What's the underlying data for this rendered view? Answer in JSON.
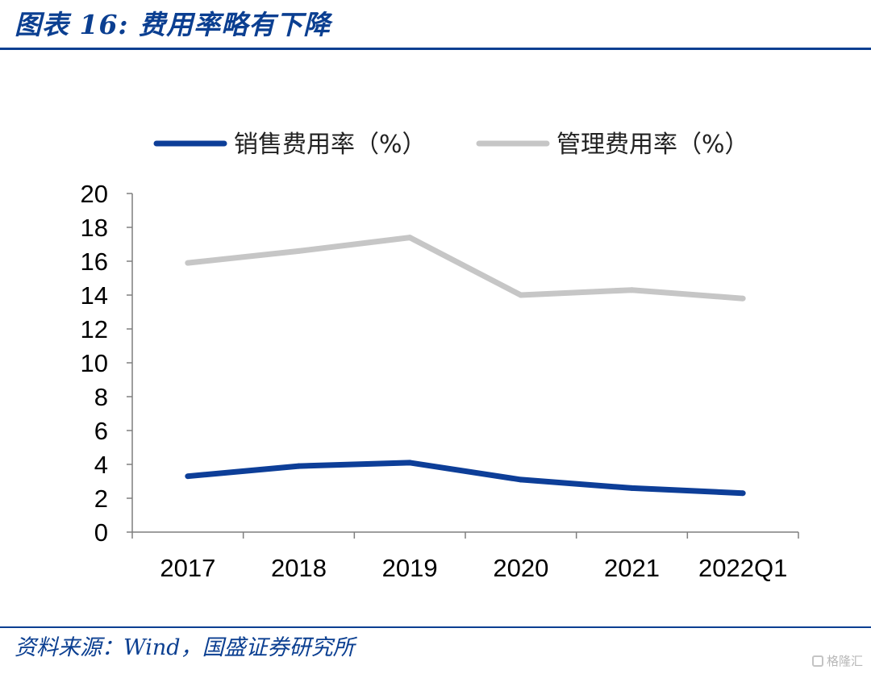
{
  "figure": {
    "title": "图表 16: 费用率略有下降",
    "source": "资料来源：Wind，国盛证券研究所",
    "watermark": "格隆汇"
  },
  "colors": {
    "brand_blue": "#0b3f91",
    "sales_line": "#0d3e98",
    "admin_line": "#c6c6c6"
  },
  "chart_data": {
    "type": "line",
    "title": "",
    "xlabel": "",
    "ylabel": "",
    "categories": [
      "2017",
      "2018",
      "2019",
      "2020",
      "2021",
      "2022Q1"
    ],
    "ylim": [
      0,
      20
    ],
    "yticks": [
      0,
      2,
      4,
      6,
      8,
      10,
      12,
      14,
      16,
      18,
      20
    ],
    "grid": false,
    "legend_position": "top",
    "series": [
      {
        "name": "销售费用率（%）",
        "color": "#0d3e98",
        "values": [
          3.3,
          3.9,
          4.1,
          3.1,
          2.6,
          2.3
        ]
      },
      {
        "name": "管理费用率（%）",
        "color": "#c6c6c6",
        "values": [
          15.9,
          16.6,
          17.4,
          14.0,
          14.3,
          13.8
        ]
      }
    ]
  }
}
